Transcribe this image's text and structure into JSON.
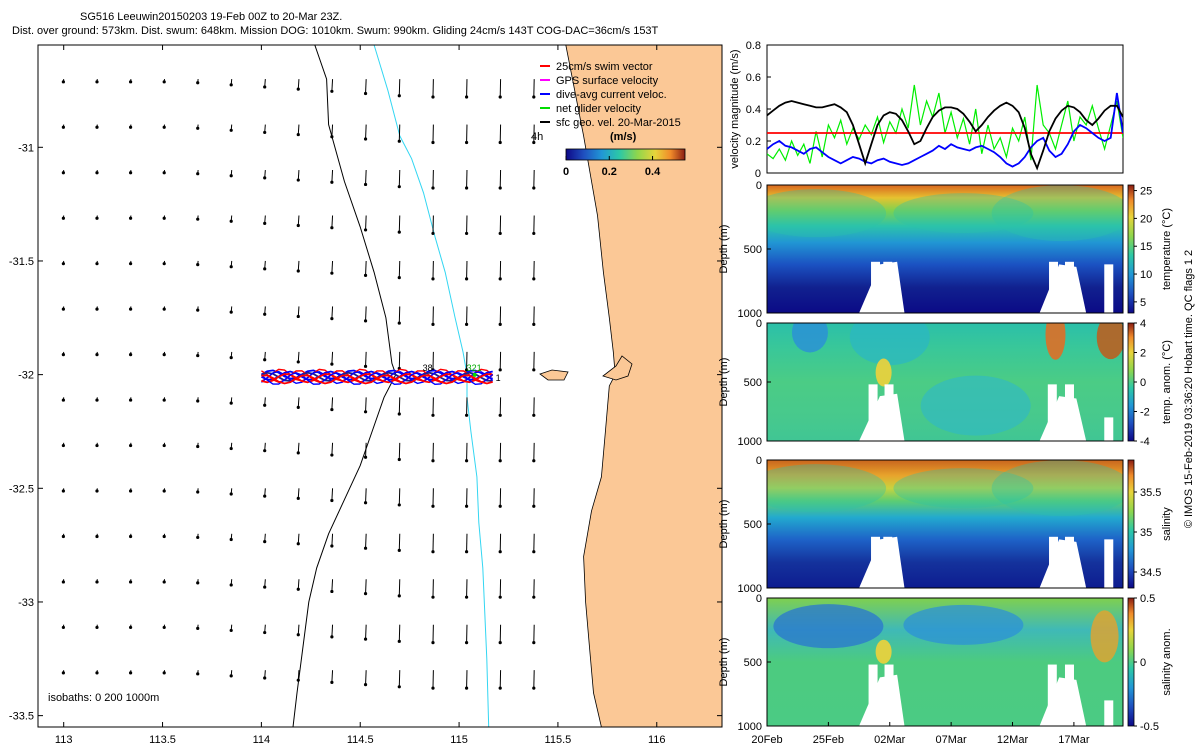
{
  "header": {
    "line1": "SG516 Leeuwin20150203 19-Feb 00Z to 20-Mar 23Z.",
    "line2": "Dist. over ground: 573km. Dist. swum: 648km. Mission DOG: 1010km. Swum: 990km. Gliding 24cm/s 143T COG-DAC=36cm/s 153T"
  },
  "side_credit": "© IMOS 15-Feb-2019 03:36:20 Hobart time. QC flags 1  2",
  "chart_data": [
    {
      "type": "map",
      "id": "map",
      "xlim": [
        112.87,
        116.33
      ],
      "ylim": [
        -33.55,
        -30.55
      ],
      "xticks": [
        113,
        113.5,
        114,
        114.5,
        115,
        115.5,
        116
      ],
      "xtick_labels": [
        "113",
        "113.5",
        "114",
        "114.5",
        "115",
        "115.5",
        "116"
      ],
      "yticks": [
        -31,
        -31.5,
        -32,
        -32.5,
        -33,
        -33.5
      ],
      "ytick_labels": [
        "-31",
        "-31.5",
        "-32",
        "-32.5",
        "-33",
        "-33.5"
      ],
      "legend": {
        "items": [
          {
            "label": "25cm/s swim vector",
            "color": "#ff0000"
          },
          {
            "label": "GPS surface velocity",
            "color": "#ff00ff"
          },
          {
            "label": "dive-avg current veloc.",
            "color": "#0000ff"
          },
          {
            "label": "net glider velocity",
            "color": "#00dd00"
          },
          {
            "label": "sfc geo. vel. 20-Mar-2015",
            "color": "#000000"
          }
        ],
        "placement": "top-right"
      },
      "colorbar": {
        "label": "(m/s)",
        "ticks": [
          0,
          0.2,
          0.4
        ],
        "tick_labels": [
          "0",
          "0.2",
          "0.4"
        ],
        "range": [
          0,
          0.55
        ]
      },
      "time_label": "4h",
      "isobath_label": "isobaths: 0   200  1000m",
      "track_labels": [
        "321",
        "38",
        "1"
      ],
      "coastline": [
        [
          116.33,
          -30.55
        ],
        [
          115.54,
          -30.55
        ],
        [
          115.63,
          -30.95
        ],
        [
          115.7,
          -31.3
        ],
        [
          115.73,
          -31.55
        ],
        [
          115.76,
          -31.75
        ],
        [
          115.78,
          -31.9
        ],
        [
          115.79,
          -32.0
        ],
        [
          115.76,
          -32.05
        ],
        [
          115.74,
          -32.25
        ],
        [
          115.72,
          -32.45
        ],
        [
          115.67,
          -32.6
        ],
        [
          115.63,
          -32.8
        ],
        [
          115.64,
          -33.0
        ],
        [
          115.66,
          -33.2
        ],
        [
          115.68,
          -33.4
        ],
        [
          115.72,
          -33.55
        ],
        [
          116.33,
          -33.55
        ]
      ],
      "isobath_200": [
        [
          114.57,
          -30.55
        ],
        [
          114.64,
          -30.75
        ],
        [
          114.7,
          -30.95
        ],
        [
          114.76,
          -31.05
        ],
        [
          114.82,
          -31.2
        ],
        [
          114.88,
          -31.4
        ],
        [
          114.93,
          -31.55
        ],
        [
          114.98,
          -31.75
        ],
        [
          115.02,
          -31.9
        ],
        [
          115.04,
          -32.0
        ],
        [
          115.04,
          -32.1
        ],
        [
          115.06,
          -32.25
        ],
        [
          115.09,
          -32.45
        ],
        [
          115.1,
          -32.65
        ],
        [
          115.12,
          -32.85
        ],
        [
          115.13,
          -33.05
        ],
        [
          115.14,
          -33.25
        ],
        [
          115.15,
          -33.55
        ]
      ],
      "isobath_1000": [
        [
          114.27,
          -30.55
        ],
        [
          114.33,
          -30.7
        ],
        [
          114.34,
          -30.9
        ],
        [
          114.42,
          -31.15
        ],
        [
          114.5,
          -31.35
        ],
        [
          114.57,
          -31.55
        ],
        [
          114.63,
          -31.75
        ],
        [
          114.66,
          -31.95
        ],
        [
          114.68,
          -32.0
        ],
        [
          114.62,
          -32.1
        ],
        [
          114.56,
          -32.25
        ],
        [
          114.5,
          -32.4
        ],
        [
          114.42,
          -32.55
        ],
        [
          114.34,
          -32.7
        ],
        [
          114.28,
          -32.85
        ],
        [
          114.24,
          -33.0
        ],
        [
          114.21,
          -33.2
        ],
        [
          114.18,
          -33.4
        ],
        [
          114.16,
          -33.55
        ]
      ],
      "track_lon_range": [
        114.0,
        115.17
      ],
      "track_lat": -32.01
    },
    {
      "type": "line",
      "id": "velocity",
      "ylabel": "velocity magnitude (m/s)",
      "ylim": [
        0,
        0.8
      ],
      "yticks": [
        0,
        0.2,
        0.4,
        0.6,
        0.8
      ],
      "ytick_labels": [
        "0",
        "0.2",
        "0.4",
        "0.6",
        "0.8"
      ],
      "xlim_days": [
        0,
        29
      ],
      "series": [
        {
          "name": "net glider velocity",
          "color": "#00ee00",
          "x": [
            0,
            0.5,
            1,
            1.5,
            2,
            2.5,
            3,
            3.5,
            4,
            4.5,
            5,
            5.5,
            6,
            6.5,
            7,
            7.5,
            8,
            8.5,
            9,
            9.5,
            10,
            10.5,
            11,
            11.5,
            12,
            12.5,
            13,
            13.5,
            14,
            14.5,
            15,
            15.5,
            16,
            16.5,
            17,
            17.5,
            18,
            18.5,
            19,
            19.5,
            20,
            20.5,
            21,
            21.5,
            22,
            22.5,
            23,
            23.5,
            24,
            24.5,
            25,
            25.5,
            26,
            26.5,
            27,
            27.5,
            28,
            28.5,
            29
          ],
          "values": [
            0.12,
            0.09,
            0.15,
            0.08,
            0.2,
            0.11,
            0.18,
            0.06,
            0.26,
            0.1,
            0.3,
            0.22,
            0.33,
            0.18,
            0.28,
            0.21,
            0.3,
            0.24,
            0.35,
            0.19,
            0.32,
            0.25,
            0.4,
            0.28,
            0.55,
            0.3,
            0.45,
            0.35,
            0.5,
            0.25,
            0.38,
            0.22,
            0.34,
            0.18,
            0.4,
            0.12,
            0.3,
            0.15,
            0.22,
            0.1,
            0.28,
            0.2,
            0.35,
            0.08,
            0.55,
            0.3,
            0.25,
            0.15,
            0.3,
            0.45,
            0.2,
            0.35,
            0.3,
            0.42,
            0.28,
            0.15,
            0.3,
            0.45,
            0.22
          ]
        },
        {
          "name": "25cm/s swim vector",
          "color": "#ff0000",
          "x": [
            0,
            29
          ],
          "values": [
            0.25,
            0.25
          ]
        },
        {
          "name": "dive-avg current veloc.",
          "color": "#0000ff",
          "x": [
            0,
            0.5,
            1,
            1.5,
            2,
            2.5,
            3,
            3.5,
            4,
            4.5,
            5,
            5.5,
            6,
            6.5,
            7,
            7.5,
            8,
            8.5,
            9,
            9.5,
            10,
            10.5,
            11,
            11.5,
            12,
            12.5,
            13,
            13.5,
            14,
            14.5,
            15,
            15.5,
            16,
            16.5,
            17,
            17.5,
            18,
            18.5,
            19,
            19.5,
            20,
            20.5,
            21,
            21.5,
            22,
            22.5,
            23,
            23.5,
            24,
            24.5,
            25,
            25.5,
            26,
            26.5,
            27,
            27.5,
            28,
            28.5,
            29
          ],
          "values": [
            0.15,
            0.18,
            0.2,
            0.17,
            0.16,
            0.14,
            0.12,
            0.15,
            0.16,
            0.13,
            0.1,
            0.08,
            0.06,
            0.08,
            0.1,
            0.09,
            0.07,
            0.06,
            0.08,
            0.09,
            0.07,
            0.06,
            0.05,
            0.06,
            0.08,
            0.1,
            0.12,
            0.14,
            0.17,
            0.15,
            0.18,
            0.16,
            0.15,
            0.14,
            0.16,
            0.17,
            0.15,
            0.13,
            0.1,
            0.06,
            0.04,
            0.06,
            0.1,
            0.16,
            0.2,
            0.22,
            0.14,
            0.1,
            0.12,
            0.18,
            0.26,
            0.3,
            0.28,
            0.25,
            0.22,
            0.2,
            0.22,
            0.5,
            0.25
          ]
        },
        {
          "name": "sfc geo. vel.",
          "color": "#000000",
          "x": [
            0,
            0.5,
            1,
            1.5,
            2,
            2.5,
            3,
            3.5,
            4,
            4.5,
            5,
            5.5,
            6,
            6.5,
            7,
            7.5,
            8,
            8.5,
            9,
            9.5,
            10,
            10.5,
            11,
            11.5,
            12,
            12.5,
            13,
            13.5,
            14,
            14.5,
            15,
            15.5,
            16,
            16.5,
            17,
            17.5,
            18,
            18.5,
            19,
            19.5,
            20,
            20.5,
            21,
            21.5,
            22,
            22.5,
            23,
            23.5,
            24,
            24.5,
            25,
            25.5,
            26,
            26.5,
            27,
            27.5,
            28,
            28.5,
            29
          ],
          "values": [
            0.36,
            0.39,
            0.42,
            0.44,
            0.45,
            0.44,
            0.43,
            0.42,
            0.41,
            0.41,
            0.42,
            0.43,
            0.41,
            0.38,
            0.3,
            0.18,
            0.06,
            0.18,
            0.3,
            0.36,
            0.38,
            0.37,
            0.33,
            0.26,
            0.18,
            0.2,
            0.28,
            0.35,
            0.39,
            0.41,
            0.41,
            0.4,
            0.37,
            0.32,
            0.26,
            0.3,
            0.35,
            0.39,
            0.42,
            0.44,
            0.42,
            0.38,
            0.28,
            0.12,
            0.03,
            0.14,
            0.26,
            0.34,
            0.39,
            0.42,
            0.41,
            0.38,
            0.33,
            0.3,
            0.34,
            0.39,
            0.42,
            0.42,
            0.35
          ]
        }
      ]
    },
    {
      "type": "heatmap",
      "id": "temperature",
      "ylabel": "Depth (m)",
      "cbar_label": "temperature (°C)",
      "cbar_range": [
        3,
        26
      ],
      "cbar_ticks": [
        5,
        10,
        15,
        20,
        25
      ],
      "cbar_tick_labels": [
        "5",
        "10",
        "15",
        "20",
        "25"
      ],
      "ylim": [
        0,
        1000
      ],
      "yticks": [
        0,
        500,
        1000
      ],
      "ytick_labels": [
        "0",
        "500",
        "1000"
      ],
      "colormap": "parula"
    },
    {
      "type": "heatmap",
      "id": "temp-anomaly",
      "ylabel": "Depth (m)",
      "cbar_label": "temp. anom. (°C)",
      "cbar_range": [
        -4,
        4
      ],
      "cbar_ticks": [
        -4,
        -2,
        0,
        2,
        4
      ],
      "cbar_tick_labels": [
        "-4",
        "-2",
        "0",
        "2",
        "4"
      ],
      "ylim": [
        0,
        1000
      ],
      "yticks": [
        0,
        500,
        1000
      ],
      "ytick_labels": [
        "0",
        "500",
        "1000"
      ],
      "colormap": "parula"
    },
    {
      "type": "heatmap",
      "id": "salinity",
      "ylabel": "Depth (m)",
      "cbar_label": "salinity",
      "cbar_range": [
        34.3,
        35.9
      ],
      "cbar_ticks": [
        34.5,
        35,
        35.5
      ],
      "cbar_tick_labels": [
        "34.5",
        "35",
        "35.5"
      ],
      "ylim": [
        0,
        1000
      ],
      "yticks": [
        0,
        500,
        1000
      ],
      "ytick_labels": [
        "0",
        "500",
        "1000"
      ],
      "colormap": "parula"
    },
    {
      "type": "heatmap",
      "id": "salinity-anomaly",
      "ylabel": "Depth (m)",
      "cbar_label": "salinity anom.",
      "cbar_range": [
        -0.5,
        0.5
      ],
      "cbar_ticks": [
        -0.5,
        0,
        0.5
      ],
      "cbar_tick_labels": [
        "-0.5",
        "0",
        "0.5"
      ],
      "ylim": [
        0,
        1000
      ],
      "yticks": [
        0,
        500,
        1000
      ],
      "ytick_labels": [
        "0",
        "500",
        "1000"
      ],
      "xlim_days": [
        0,
        29
      ],
      "xticks_days": [
        0,
        5,
        10,
        15,
        20,
        25
      ],
      "xtick_labels": [
        "20Feb",
        "25Feb",
        "02Mar",
        "07Mar",
        "12Mar",
        "17Mar"
      ],
      "colormap": "parula"
    }
  ]
}
